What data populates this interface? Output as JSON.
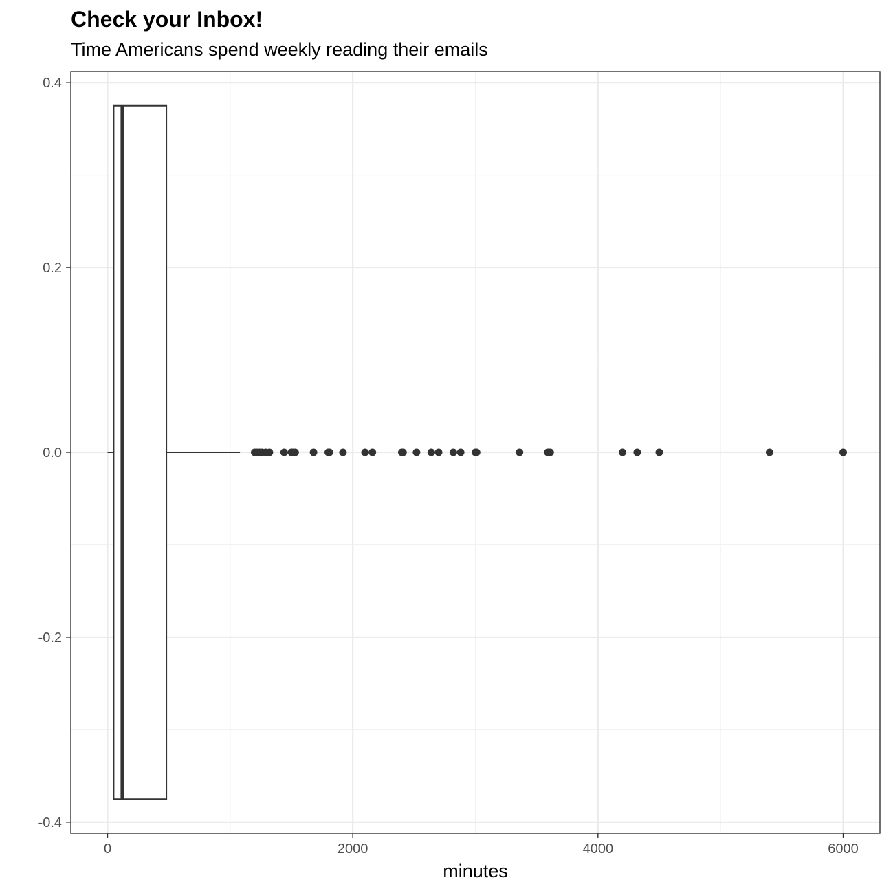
{
  "chart_data": {
    "type": "boxplot",
    "title": "Check your Inbox!",
    "subtitle": "Time Americans spend weekly reading their emails",
    "xlabel": "minutes",
    "ylabel": "",
    "xlim": [
      -300,
      6300
    ],
    "ylim": [
      -0.412,
      0.412
    ],
    "x_ticks": [
      0,
      2000,
      4000,
      6000
    ],
    "x_tick_labels": [
      "0",
      "2000",
      "4000",
      "6000"
    ],
    "y_ticks": [
      -0.4,
      -0.2,
      0.0,
      0.2,
      0.4
    ],
    "y_tick_labels": [
      "-0.4",
      "-0.2",
      "0.0",
      "0.2",
      "0.4"
    ],
    "grid": true,
    "box": {
      "min": 0,
      "q1": 50,
      "median": 120,
      "q3": 480,
      "whisker_high": 1080,
      "y_half_width": 0.375
    },
    "outliers": [
      1200,
      1220,
      1240,
      1260,
      1290,
      1320,
      1440,
      1500,
      1510,
      1530,
      1680,
      1800,
      1810,
      1920,
      2100,
      2160,
      2400,
      2410,
      2520,
      2640,
      2700,
      2820,
      2880,
      3000,
      3010,
      3360,
      3590,
      3600,
      3610,
      4200,
      4320,
      4500,
      5400,
      6000
    ],
    "colors": {
      "panel_border": "#333333",
      "grid_major": "#ebebeb",
      "grid_minor": "#f2f2f2",
      "box_stroke": "#333333",
      "point": "#333333"
    }
  }
}
